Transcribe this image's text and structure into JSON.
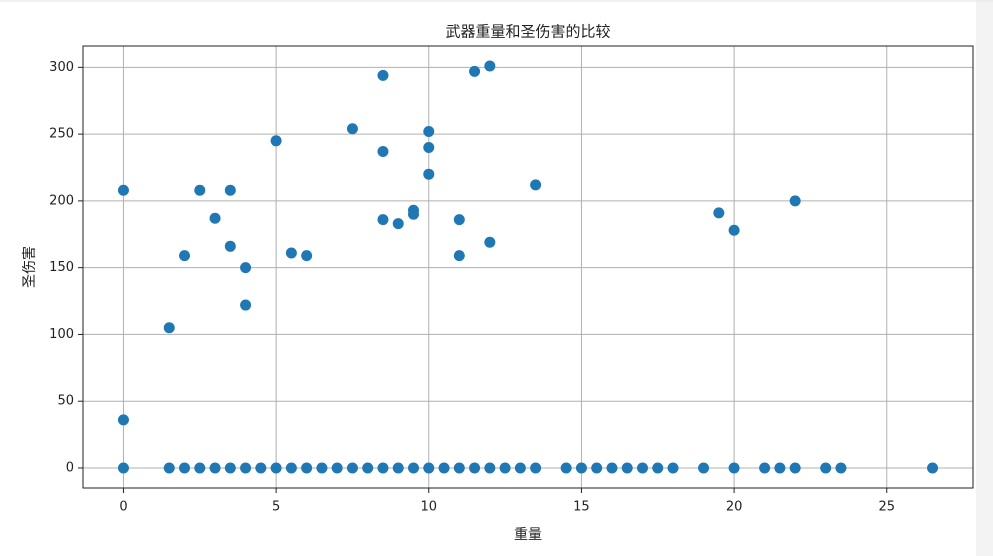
{
  "chart_data": {
    "type": "scatter",
    "title": "武器重量和圣伤害的比较",
    "x_label": "重量",
    "y_label": "圣伤害",
    "series": [
      {
        "color": "#1f77b4",
        "x": [
          0,
          0,
          1.5,
          2,
          2.5,
          3,
          3.5,
          3.5,
          4,
          4,
          5,
          5.5,
          6,
          7.5,
          8.5,
          8.5,
          8.5,
          9,
          9.5,
          9.5,
          10,
          10,
          10,
          11,
          11,
          11.5,
          12,
          12,
          13.5,
          19.5,
          20,
          22,
          0,
          1.5,
          2,
          2.5,
          3,
          3.5,
          4,
          4.5,
          5,
          5.5,
          6,
          6.5,
          7,
          7.5,
          8,
          8.5,
          9,
          9.5,
          10,
          10.5,
          11,
          11.5,
          12,
          12.5,
          13,
          13.5,
          14.5,
          15,
          15.5,
          16,
          16.5,
          17,
          17.5,
          18,
          19,
          20,
          21,
          21.5,
          22,
          23,
          23.5,
          26.5
        ],
        "values": [
          208,
          36,
          105,
          159,
          208,
          187,
          208,
          166,
          150,
          122,
          245,
          161,
          159,
          254,
          294,
          237,
          186,
          183,
          193,
          190,
          252,
          240,
          220,
          186,
          159,
          297,
          301,
          169,
          212,
          191,
          178,
          200,
          0,
          0,
          0,
          0,
          0,
          0,
          0,
          0,
          0,
          0,
          0,
          0,
          0,
          0,
          0,
          0,
          0,
          0,
          0,
          0,
          0,
          0,
          0,
          0,
          0,
          0,
          0,
          0,
          0,
          0,
          0,
          0,
          0,
          0,
          0,
          0,
          0,
          0,
          0,
          0,
          0,
          0
        ]
      }
    ],
    "xlim": [
      -1.325,
      27.825
    ],
    "ylim": [
      -15,
      316
    ],
    "xticks": [
      0,
      5,
      10,
      15,
      20,
      25
    ],
    "yticks": [
      0,
      50,
      100,
      150,
      200,
      250,
      300
    ],
    "grid": true
  }
}
